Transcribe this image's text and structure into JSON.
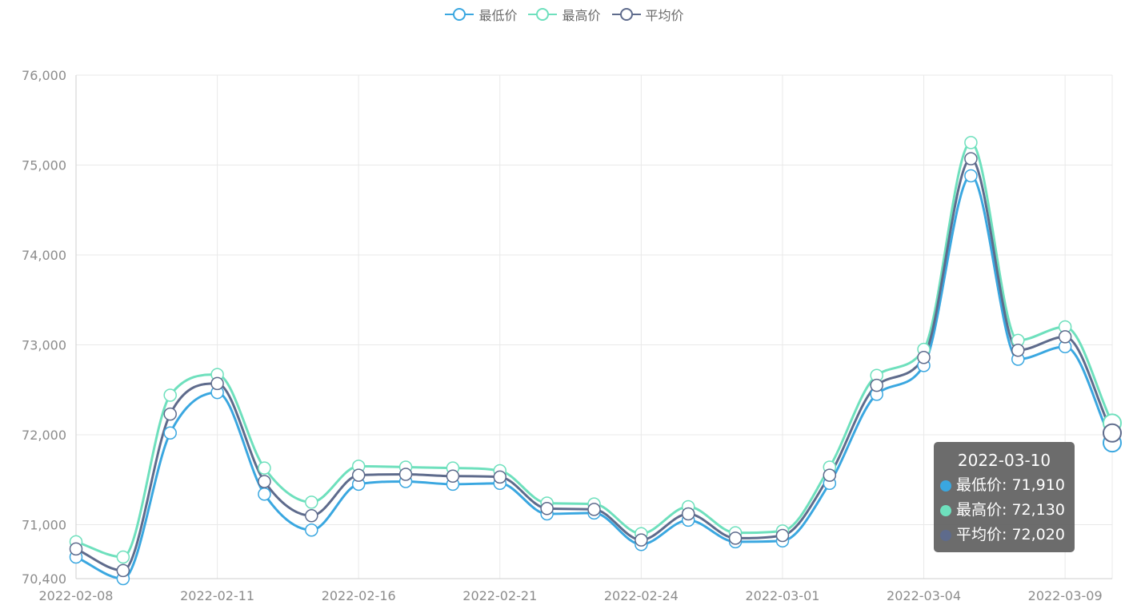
{
  "legend": [
    {
      "name": "最低价",
      "color": "#3aa7e0"
    },
    {
      "name": "最高价",
      "color": "#6ee0bd"
    },
    {
      "name": "平均价",
      "color": "#5e6b8c"
    }
  ],
  "tooltip": {
    "title": "2022-03-10",
    "rows": [
      {
        "label": "最低价: 71,910",
        "color": "#3aa7e0"
      },
      {
        "label": "最高价: 72,130",
        "color": "#6ee0bd"
      },
      {
        "label": "平均价: 72,020",
        "color": "#5e6b8c"
      }
    ]
  },
  "chart_data": {
    "type": "line",
    "x": [
      "2022-02-08",
      "2022-02-09",
      "2022-02-10",
      "2022-02-11",
      "2022-02-14",
      "2022-02-15",
      "2022-02-16",
      "2022-02-17",
      "2022-02-18",
      "2022-02-21",
      "2022-02-22",
      "2022-02-23",
      "2022-02-24",
      "2022-02-25",
      "2022-02-28",
      "2022-03-01",
      "2022-03-02",
      "2022-03-03",
      "2022-03-04",
      "2022-03-07",
      "2022-03-08",
      "2022-03-09",
      "2022-03-10"
    ],
    "x_tick_labels": [
      "2022-02-08",
      "2022-02-11",
      "2022-02-16",
      "2022-02-21",
      "2022-02-24",
      "2022-03-01",
      "2022-03-04",
      "2022-03-09"
    ],
    "y_tick_labels": [
      "70,400",
      "71,000",
      "72,000",
      "73,000",
      "74,000",
      "75,000",
      "76,000"
    ],
    "ylim": [
      70400,
      76000
    ],
    "smooth": true,
    "grid": true,
    "legend_position": "top-center",
    "series": [
      {
        "name": "最低价",
        "color": "#3aa7e0",
        "values": [
          70640,
          70400,
          72020,
          72470,
          71340,
          70940,
          71450,
          71480,
          71450,
          71460,
          71120,
          71130,
          70780,
          71050,
          70810,
          70820,
          71460,
          72450,
          72770,
          74880,
          72840,
          72980,
          71910
        ]
      },
      {
        "name": "最高价",
        "color": "#6ee0bd",
        "values": [
          70810,
          70640,
          72440,
          72670,
          71630,
          71250,
          71650,
          71640,
          71630,
          71600,
          71240,
          71230,
          70900,
          71200,
          70910,
          70930,
          71640,
          72660,
          72950,
          75250,
          73050,
          73200,
          72130
        ]
      },
      {
        "name": "平均价",
        "color": "#5e6b8c",
        "values": [
          70730,
          70490,
          72230,
          72570,
          71480,
          71100,
          71550,
          71560,
          71540,
          71530,
          71180,
          71170,
          70830,
          71120,
          70850,
          70880,
          71550,
          72550,
          72860,
          75070,
          72940,
          73090,
          72020
        ]
      }
    ]
  }
}
